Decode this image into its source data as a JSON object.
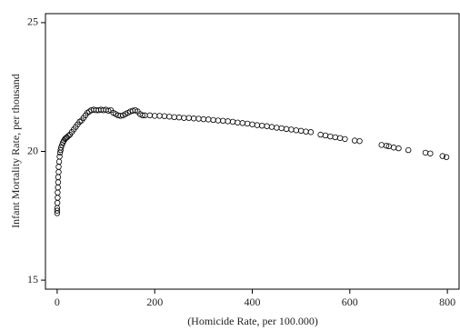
{
  "chart_data": {
    "type": "scatter",
    "x_label": "(Homicide Rate, per 100.000)",
    "y_label": "Infant Mortality Rate, per thousand",
    "x": [
      0,
      0,
      0,
      0.5,
      1,
      1,
      1.5,
      2,
      2,
      3,
      3,
      4,
      5,
      6,
      7,
      8,
      10,
      12,
      14,
      16,
      18,
      20,
      23,
      26,
      30,
      34,
      38,
      42,
      46,
      50,
      54,
      58,
      62,
      66,
      70,
      75,
      80,
      85,
      90,
      95,
      100,
      105,
      110,
      115,
      120,
      125,
      130,
      135,
      140,
      145,
      150,
      155,
      160,
      165,
      170,
      175,
      180,
      190,
      200,
      210,
      220,
      230,
      240,
      250,
      260,
      270,
      280,
      290,
      300,
      310,
      320,
      330,
      340,
      350,
      360,
      370,
      380,
      390,
      400,
      410,
      420,
      430,
      440,
      450,
      460,
      470,
      480,
      490,
      500,
      510,
      520,
      540,
      550,
      560,
      570,
      580,
      590,
      610,
      620,
      665,
      675,
      680,
      690,
      700,
      720,
      755,
      765,
      790,
      798
    ],
    "values": [
      17.6,
      17.7,
      17.8,
      18.0,
      18.2,
      18.4,
      18.6,
      18.8,
      19.0,
      19.2,
      19.4,
      19.6,
      19.8,
      19.95,
      20.05,
      20.15,
      20.25,
      20.35,
      20.42,
      20.48,
      20.52,
      20.55,
      20.6,
      20.65,
      20.75,
      20.85,
      20.95,
      21.05,
      21.15,
      21.2,
      21.3,
      21.4,
      21.5,
      21.55,
      21.6,
      21.62,
      21.6,
      21.6,
      21.62,
      21.6,
      21.62,
      21.58,
      21.6,
      21.5,
      21.45,
      21.4,
      21.38,
      21.4,
      21.45,
      21.5,
      21.55,
      21.58,
      21.6,
      21.55,
      21.45,
      21.4,
      21.4,
      21.4,
      21.38,
      21.38,
      21.37,
      21.35,
      21.33,
      21.32,
      21.3,
      21.3,
      21.28,
      21.27,
      21.25,
      21.24,
      21.22,
      21.2,
      21.19,
      21.17,
      21.15,
      21.12,
      21.1,
      21.08,
      21.05,
      21.02,
      21.0,
      20.98,
      20.95,
      20.92,
      20.9,
      20.87,
      20.85,
      20.82,
      20.8,
      20.77,
      20.75,
      20.65,
      20.62,
      20.58,
      20.55,
      20.52,
      20.48,
      20.42,
      20.4,
      20.25,
      20.22,
      20.2,
      20.15,
      20.12,
      20.05,
      19.95,
      19.92,
      19.82,
      19.78
    ],
    "color": "#000000",
    "xlim": [
      -24,
      824
    ],
    "ylim": [
      14.65,
      25.35
    ],
    "xticks": [
      0,
      200,
      400,
      600,
      800
    ],
    "yticks": [
      15,
      20,
      25
    ],
    "grid": false
  }
}
